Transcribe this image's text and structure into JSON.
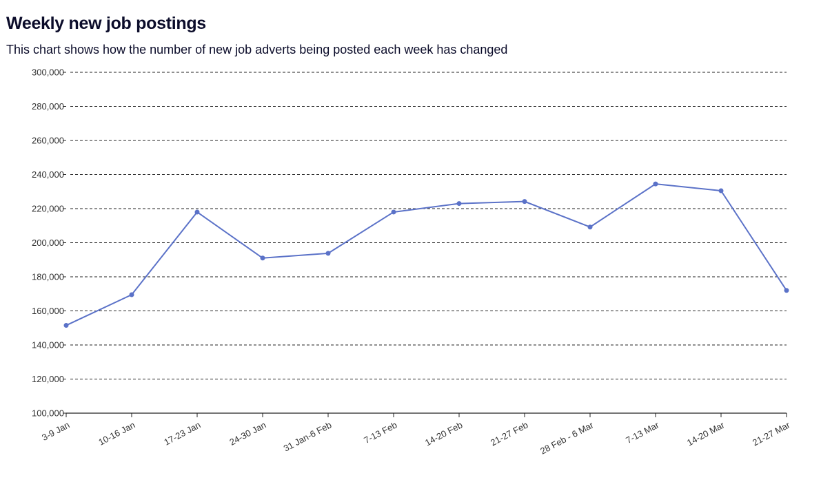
{
  "chart_data": {
    "type": "line",
    "title": "Weekly new job postings",
    "subtitle": "This chart shows how the number of new job adverts being posted each week has changed",
    "xlabel": "",
    "ylabel": "",
    "categories": [
      "3-9 Jan",
      "10-16 Jan",
      "17-23 Jan",
      "24-30 Jan",
      "31 Jan-6 Feb",
      "7-13 Feb",
      "14-20 Feb",
      "21-27 Feb",
      "28 Feb - 6 Mar",
      "7-13 Mar",
      "14-20 Mar",
      "21-27 Mar"
    ],
    "series": [
      {
        "values": [
          151500,
          169500,
          218000,
          191000,
          193800,
          218000,
          223000,
          224200,
          209200,
          234500,
          230500,
          172000
        ],
        "color": "#5b72c8"
      }
    ],
    "ylim": [
      100000,
      300000
    ],
    "yticks": [
      100000,
      120000,
      140000,
      160000,
      180000,
      200000,
      220000,
      240000,
      260000,
      280000,
      300000
    ],
    "ytick_labels": [
      "100,000",
      "120,000",
      "140,000",
      "160,000",
      "180,000",
      "200,000",
      "220,000",
      "240,000",
      "260,000",
      "280,000",
      "300,000"
    ],
    "grid": true,
    "legend": "none"
  }
}
